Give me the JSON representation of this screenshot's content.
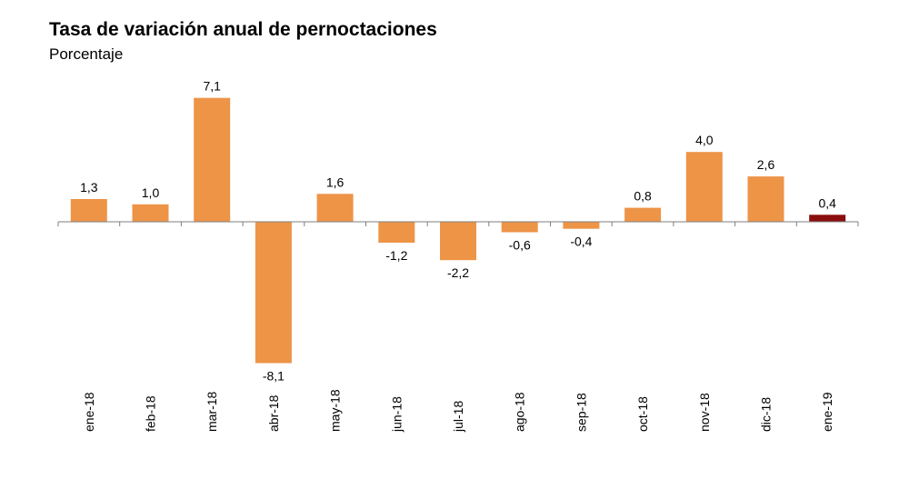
{
  "colors": {
    "bar": "#ED9447",
    "highlight": "#8B0E0E",
    "axis": "#7F7F7F"
  },
  "chart_data": {
    "type": "bar",
    "title": "Tasa de variación anual de pernoctaciones",
    "subtitle": "Porcentaje",
    "xlabel": "",
    "ylabel": "",
    "categories": [
      "ene-18",
      "feb-18",
      "mar-18",
      "abr-18",
      "may-18",
      "jun-18",
      "jul-18",
      "ago-18",
      "sep-18",
      "oct-18",
      "nov-18",
      "dic-18",
      "ene-19"
    ],
    "values": [
      1.3,
      1.0,
      7.1,
      -8.1,
      1.6,
      -1.2,
      -2.2,
      -0.6,
      -0.4,
      0.8,
      4.0,
      2.6,
      0.4
    ],
    "data_labels": [
      "1,3",
      "1,0",
      "7,1",
      "-8,1",
      "1,6",
      "-1,2",
      "-2,2",
      "-0,6",
      "-0,4",
      "0,8",
      "4,0",
      "2,6",
      "0,4"
    ],
    "highlight_index": 12,
    "grid": false,
    "legend": "none"
  }
}
